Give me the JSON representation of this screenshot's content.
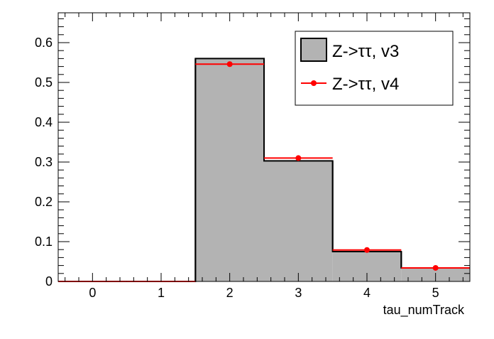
{
  "chart_data": {
    "type": "bar",
    "xlabel": "tau_numTrack",
    "ylabel": "",
    "xlim": [
      -0.5,
      5.5
    ],
    "ylim": [
      0,
      0.675
    ],
    "x_tick_labels": [
      "0",
      "1",
      "2",
      "3",
      "4",
      "5"
    ],
    "y_tick_labels": [
      "0",
      "0.1",
      "0.2",
      "0.3",
      "0.4",
      "0.5",
      "0.6"
    ],
    "bins": [
      0,
      1,
      2,
      3,
      4,
      5
    ],
    "series": [
      {
        "name": "Z->ττ, v3",
        "style": "filled-histogram",
        "fill_color": "#b3b3b3",
        "line_color": "#000000",
        "values": [
          0,
          0,
          0.56,
          0.303,
          0.075,
          0.034
        ]
      },
      {
        "name": "Z->ττ, v4",
        "style": "points-with-bars",
        "color": "#ff0000",
        "values": [
          0,
          0,
          0.546,
          0.31,
          0.079,
          0.034
        ]
      }
    ],
    "legend": {
      "position": "top-right"
    },
    "grid": false
  }
}
